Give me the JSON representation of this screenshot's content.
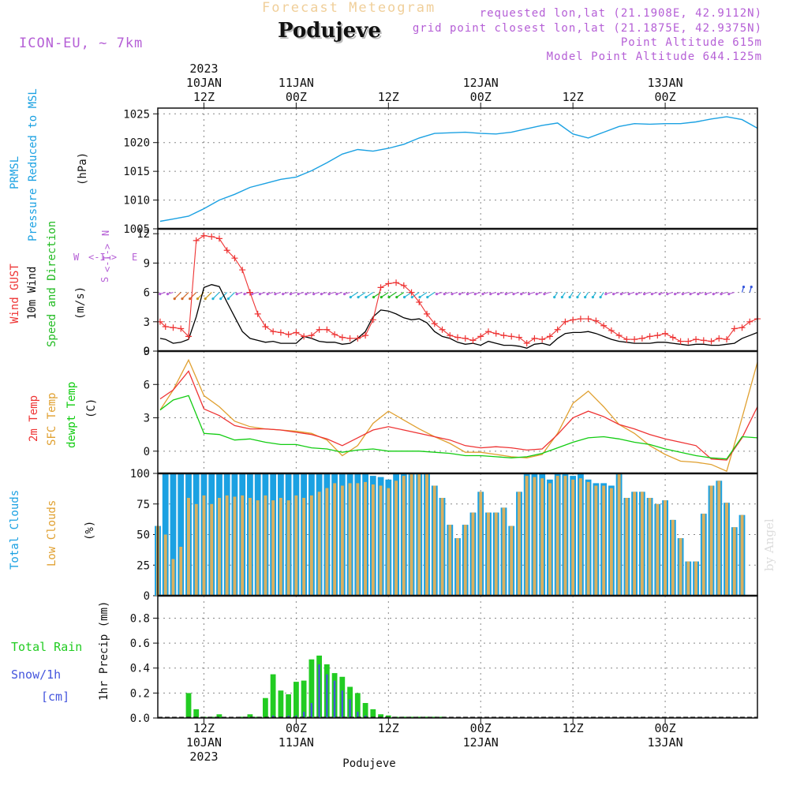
{
  "header": {
    "title": "Forecast Meteogram",
    "place": "Podujeve",
    "model": "ICON-EU, ~ 7km",
    "requested": "requested lon,lat (21.1908E, 42.9112N)",
    "grid_point": "grid point closest lon,lat (21.1875E, 42.9375N)",
    "point_altitude": "Point Altitude 615m",
    "model_altitude": "Model Point Altitude 644.125m",
    "credit": "by Angel",
    "footer": "Podujeve"
  },
  "colors": {
    "pressure": "#1ba1e2",
    "gust": "#ee3333",
    "wind10m": "#000000",
    "arrow_green": "#22bb22",
    "t2m": "#ee3333",
    "tsfc": "#e0a030",
    "dewpt": "#11cc11",
    "total_clouds": "#1ba1e2",
    "low_clouds": "#d9b060",
    "rain": "#22cc22",
    "snow": "#4455dd",
    "label_purple": "#b55fd6"
  },
  "time_axis": {
    "top_year": "2023",
    "bottom_year": "2023",
    "major_ticks": [
      {
        "hour": 12,
        "label": "12Z",
        "date": "10JAN"
      },
      {
        "hour": 24,
        "label": "00Z",
        "date": "11JAN"
      },
      {
        "hour": 36,
        "label": "12Z",
        "date": ""
      },
      {
        "hour": 48,
        "label": "00Z",
        "date": "12JAN"
      },
      {
        "hour": 60,
        "label": "12Z",
        "date": ""
      },
      {
        "hour": 72,
        "label": "00Z",
        "date": "13JAN"
      }
    ]
  },
  "compass": {
    "n": "N",
    "s": "S",
    "w": "W",
    "e": "E",
    "arrow": "<-I->"
  },
  "chart_data": [
    {
      "type": "line",
      "title": "PRMSL Pressure Reduced to MSL",
      "ylabel_lines": [
        "PRMSL",
        "Pressure Reduced to MSL"
      ],
      "unit": "(hPa)",
      "ylim": [
        1005,
        1026
      ],
      "yticks": [
        1005,
        1010,
        1015,
        1020,
        1025
      ],
      "series": [
        {
          "name": "PRMSL",
          "x": [
            6.3,
            8,
            10,
            12,
            14,
            16,
            18,
            20,
            22,
            24,
            26,
            28,
            30,
            32,
            34,
            36,
            38,
            40,
            42,
            44,
            46,
            48,
            50,
            52,
            54,
            56,
            58,
            60,
            62,
            64,
            66,
            68,
            70,
            72,
            74,
            76,
            78,
            80,
            82,
            84
          ],
          "values": [
            1006.3,
            1006.7,
            1007.2,
            1008.5,
            1010,
            1011,
            1012.2,
            1012.9,
            1013.6,
            1014,
            1015.1,
            1016.5,
            1018,
            1018.8,
            1018.5,
            1019,
            1019.7,
            1020.8,
            1021.6,
            1021.7,
            1021.8,
            1021.6,
            1021.5,
            1021.8,
            1022.4,
            1023,
            1023.4,
            1021.5,
            1020.8,
            1021.8,
            1022.8,
            1023.3,
            1023.2,
            1023.3,
            1023.3,
            1023.6,
            1024.1,
            1024.5,
            1024,
            1022.5
          ]
        }
      ]
    },
    {
      "type": "line",
      "title": "Wind GUST / 10m Wind Speed and Direction",
      "ylabel_lines": [
        "Wind GUST",
        "10m Wind",
        "Speed and Direction"
      ],
      "unit": "(m/s)",
      "ylim": [
        0,
        12.5
      ],
      "yticks": [
        0,
        3,
        6,
        9,
        12
      ],
      "series": [
        {
          "name": "Wind GUST",
          "x": [
            6.3,
            7,
            8,
            9,
            10,
            11,
            12,
            13,
            14,
            15,
            16,
            17,
            18,
            19,
            20,
            21,
            22,
            23,
            24,
            25,
            26,
            27,
            28,
            29,
            30,
            31,
            32,
            33,
            34,
            35,
            36,
            37,
            38,
            39,
            40,
            41,
            42,
            43,
            44,
            45,
            46,
            47,
            48,
            49,
            50,
            51,
            52,
            53,
            54,
            55,
            56,
            57,
            58,
            59,
            60,
            61,
            62,
            63,
            64,
            65,
            66,
            67,
            68,
            69,
            70,
            71,
            72,
            73,
            74,
            75,
            76,
            77,
            78,
            79,
            80,
            81,
            82,
            83,
            84
          ],
          "values": [
            3,
            2.5,
            2.4,
            2.3,
            1.5,
            11.3,
            11.8,
            11.7,
            11.5,
            10.3,
            9.5,
            8.3,
            6,
            3.8,
            2.5,
            2,
            1.9,
            1.7,
            1.9,
            1.5,
            1.6,
            2.2,
            2.2,
            1.7,
            1.4,
            1.3,
            1.3,
            1.6,
            3.2,
            6.5,
            6.9,
            7,
            6.7,
            6,
            5,
            3.8,
            2.8,
            2.2,
            1.6,
            1.4,
            1.3,
            1.1,
            1.5,
            2,
            1.8,
            1.6,
            1.5,
            1.4,
            0.8,
            1.3,
            1.2,
            1.5,
            2.2,
            3,
            3.2,
            3.3,
            3.3,
            3.1,
            2.6,
            2.1,
            1.6,
            1.2,
            1.2,
            1.3,
            1.5,
            1.6,
            1.8,
            1.4,
            1,
            1,
            1.2,
            1.1,
            1,
            1.3,
            1.2,
            2.3,
            2.4,
            3,
            3.3
          ]
        },
        {
          "name": "10m Wind",
          "x": [
            6.3,
            7,
            8,
            9,
            10,
            11,
            12,
            13,
            14,
            15,
            16,
            17,
            18,
            19,
            20,
            21,
            22,
            23,
            24,
            25,
            26,
            27,
            28,
            29,
            30,
            31,
            32,
            33,
            34,
            35,
            36,
            37,
            38,
            39,
            40,
            41,
            42,
            43,
            44,
            45,
            46,
            47,
            48,
            49,
            50,
            51,
            52,
            53,
            54,
            55,
            56,
            57,
            58,
            59,
            60,
            61,
            62,
            63,
            64,
            65,
            66,
            67,
            68,
            69,
            70,
            71,
            72,
            73,
            74,
            75,
            76,
            77,
            78,
            79,
            80,
            81,
            82,
            83,
            84
          ],
          "values": [
            1.3,
            1.2,
            0.8,
            0.9,
            1.2,
            3.5,
            6.5,
            6.8,
            6.6,
            5,
            3.5,
            2,
            1.3,
            1.1,
            0.9,
            1,
            0.8,
            0.8,
            0.8,
            1.5,
            1.3,
            1,
            0.9,
            0.9,
            0.7,
            0.8,
            1.3,
            2,
            3.5,
            4.2,
            4.1,
            3.8,
            3.4,
            3.2,
            3.3,
            2.9,
            2,
            1.5,
            1.3,
            0.9,
            0.7,
            0.8,
            0.6,
            1,
            0.8,
            0.6,
            0.6,
            0.5,
            0.3,
            0.7,
            0.8,
            0.6,
            1.3,
            1.8,
            1.9,
            1.9,
            2,
            1.8,
            1.5,
            1.2,
            1,
            0.9,
            0.8,
            0.8,
            0.8,
            0.9,
            0.9,
            0.8,
            0.7,
            0.6,
            0.7,
            0.7,
            0.6,
            0.6,
            0.7,
            0.8,
            1.3,
            1.6,
            1.9
          ]
        }
      ]
    },
    {
      "type": "line",
      "title": "2m Temp / SFC Temp / dewpt Temp",
      "ylabel_lines": [
        "2m Temp",
        "SFC Temp",
        "dewpt Temp"
      ],
      "unit": "(C)",
      "ylim": [
        -2,
        9
      ],
      "yticks": [
        0,
        3,
        6,
        9
      ],
      "series": [
        {
          "name": "2m Temp",
          "x": [
            6.3,
            8,
            10,
            12,
            14,
            16,
            18,
            20,
            22,
            24,
            26,
            28,
            30,
            32,
            34,
            36,
            38,
            40,
            42,
            44,
            46,
            48,
            50,
            52,
            54,
            56,
            58,
            60,
            62,
            64,
            66,
            68,
            70,
            72,
            74,
            76,
            78,
            80,
            82,
            84
          ],
          "values": [
            4.7,
            5.5,
            7.2,
            3.8,
            3.2,
            2.3,
            2,
            2,
            1.9,
            1.7,
            1.5,
            1.1,
            0.5,
            1.2,
            1.9,
            2.2,
            1.9,
            1.6,
            1.3,
            1,
            0.5,
            0.3,
            0.4,
            0.3,
            0.1,
            0.2,
            1.5,
            3,
            3.6,
            3.1,
            2.4,
            2,
            1.5,
            1.1,
            0.8,
            0.5,
            -0.7,
            -0.8,
            1.2,
            4
          ]
        },
        {
          "name": "SFC Temp",
          "x": [
            6.3,
            8,
            10,
            12,
            14,
            16,
            18,
            20,
            22,
            24,
            26,
            28,
            30,
            32,
            34,
            36,
            38,
            40,
            42,
            44,
            46,
            48,
            50,
            52,
            54,
            56,
            58,
            60,
            62,
            64,
            66,
            68,
            70,
            72,
            74,
            76,
            78,
            80,
            82,
            84
          ],
          "values": [
            3.7,
            5.5,
            8.2,
            5,
            4,
            2.7,
            2.2,
            2,
            1.9,
            1.8,
            1.6,
            1,
            -0.4,
            0.5,
            2.5,
            3.6,
            2.8,
            2,
            1.3,
            0.7,
            -0.1,
            -0.1,
            -0.3,
            -0.5,
            -0.6,
            -0.3,
            1.6,
            4.3,
            5.4,
            4,
            2.4,
            1.6,
            0.5,
            -0.3,
            -0.9,
            -1,
            -1.2,
            -1.8,
            3,
            8
          ]
        },
        {
          "name": "dewpt Temp",
          "x": [
            6.3,
            8,
            10,
            12,
            14,
            16,
            18,
            20,
            22,
            24,
            26,
            28,
            30,
            32,
            34,
            36,
            38,
            40,
            42,
            44,
            46,
            48,
            50,
            52,
            54,
            56,
            58,
            60,
            62,
            64,
            66,
            68,
            70,
            72,
            74,
            76,
            78,
            80,
            82,
            84
          ],
          "values": [
            3.7,
            4.6,
            5,
            1.6,
            1.5,
            1,
            1.1,
            0.8,
            0.6,
            0.6,
            0.3,
            0.2,
            -0.1,
            0.1,
            0.2,
            0,
            0,
            0,
            -0.1,
            -0.2,
            -0.4,
            -0.4,
            -0.5,
            -0.6,
            -0.5,
            -0.2,
            0.3,
            0.8,
            1.2,
            1.3,
            1.1,
            0.8,
            0.6,
            0.2,
            -0.1,
            -0.4,
            -0.6,
            -0.7,
            1.3,
            1.2
          ]
        }
      ]
    },
    {
      "type": "bar",
      "title": "Total Clouds / Low Clouds",
      "ylabel_lines": [
        "Total Clouds",
        "Low Clouds"
      ],
      "unit": "(%)",
      "ylim": [
        0,
        100
      ],
      "yticks": [
        0,
        25,
        50,
        75,
        100
      ],
      "x": [
        6,
        7,
        8,
        9,
        10,
        11,
        12,
        13,
        14,
        15,
        16,
        17,
        18,
        19,
        20,
        21,
        22,
        23,
        24,
        25,
        26,
        27,
        28,
        29,
        30,
        31,
        32,
        33,
        34,
        35,
        36,
        37,
        38,
        39,
        40,
        41,
        42,
        43,
        44,
        45,
        46,
        47,
        48,
        49,
        50,
        51,
        52,
        53,
        54,
        55,
        56,
        57,
        58,
        59,
        60,
        61,
        62,
        63,
        64,
        65,
        66,
        67,
        68,
        69,
        70,
        71,
        72,
        73,
        74,
        75,
        76,
        77,
        78,
        79,
        80,
        81,
        82,
        83,
        84
      ],
      "series": [
        {
          "name": "Total Clouds",
          "values": [
            57,
            100,
            100,
            100,
            100,
            100,
            100,
            100,
            100,
            100,
            100,
            100,
            100,
            100,
            100,
            100,
            100,
            100,
            100,
            100,
            100,
            100,
            100,
            100,
            100,
            100,
            100,
            100,
            98,
            97,
            95,
            100,
            100,
            100,
            100,
            100,
            90,
            80,
            58,
            47,
            58,
            68,
            85,
            68,
            68,
            72,
            57,
            85,
            100,
            100,
            100,
            95,
            100,
            100,
            98,
            100,
            95,
            92,
            92,
            90,
            100,
            80,
            85,
            85,
            80,
            75,
            78,
            62,
            47,
            28,
            28,
            67,
            90,
            94,
            76,
            56,
            66,
            0,
            0
          ]
        },
        {
          "name": "Low Clouds",
          "values": [
            57,
            50,
            30,
            40,
            80,
            75,
            82,
            75,
            80,
            82,
            81,
            82,
            80,
            78,
            82,
            78,
            80,
            78,
            82,
            80,
            82,
            85,
            88,
            92,
            90,
            92,
            92,
            93,
            91,
            90,
            88,
            94,
            98,
            100,
            100,
            100,
            90,
            80,
            58,
            47,
            58,
            68,
            85,
            68,
            68,
            72,
            57,
            85,
            98,
            97,
            96,
            92,
            98,
            98,
            95,
            96,
            93,
            90,
            90,
            88,
            100,
            80,
            85,
            85,
            80,
            75,
            78,
            62,
            47,
            28,
            28,
            67,
            90,
            94,
            76,
            56,
            66,
            0,
            0
          ]
        }
      ]
    },
    {
      "type": "bar",
      "title": "Total Rain / Snow/1h [cm] - 1hr Precip (mm)",
      "ylabel_lines": [
        "Total   Rain",
        "Snow/1h",
        "[cm]"
      ],
      "right_label": "1hr Precip (mm)",
      "ylim": [
        0,
        0.98
      ],
      "yticks": [
        0,
        0.2,
        0.4,
        0.6,
        0.8
      ],
      "x": [
        10,
        11,
        12,
        13,
        14,
        15,
        16,
        17,
        18,
        19,
        20,
        21,
        22,
        23,
        24,
        25,
        26,
        27,
        28,
        29,
        30,
        31,
        32,
        33,
        34,
        35,
        36,
        37,
        38,
        39,
        40,
        41,
        42,
        43
      ],
      "series": [
        {
          "name": "Total Rain",
          "values": [
            0.2,
            0.07,
            0.01,
            0.01,
            0.03,
            0,
            0,
            0.01,
            0.03,
            0.01,
            0.16,
            0.35,
            0.22,
            0.19,
            0.29,
            0.3,
            0.47,
            0.5,
            0.43,
            0.36,
            0.33,
            0.25,
            0.2,
            0.12,
            0.07,
            0.03,
            0.02,
            0.01,
            0.01,
            0.01,
            0.01,
            0.01,
            0.01,
            0.01
          ]
        },
        {
          "name": "Snow/1h",
          "values": [
            0,
            0,
            0,
            0,
            0,
            0,
            0,
            0,
            0,
            0,
            0,
            0.02,
            0.01,
            0.02,
            0.02,
            0.05,
            0.12,
            0.43,
            0.35,
            0.3,
            0.22,
            0.15,
            0.05,
            0.02,
            0,
            0,
            0,
            0,
            0,
            0,
            0,
            0,
            0,
            0
          ]
        }
      ]
    }
  ]
}
